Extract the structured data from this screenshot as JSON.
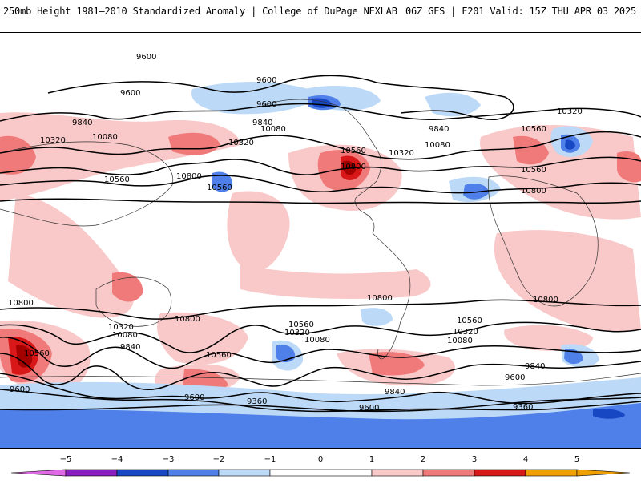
{
  "header": {
    "title": "250mb Height 1981–2010 Standardized Anomaly | College of DuPage NEXLAB",
    "run": "06Z GFS | F201 Valid: 15Z THU APR 03 2025"
  },
  "colors": {
    "neg5": "#e06ae6",
    "neg4": "#8a1fc1",
    "neg3": "#1847c4",
    "neg2": "#4f7fe8",
    "neg1": "#bcd9f7",
    "zero": "#ffffff",
    "pos1": "#f9c8c8",
    "pos2": "#f07a7a",
    "pos3": "#d81818",
    "pos4": "#a50000",
    "pos5": "#f0a000",
    "contour": "#000000",
    "coast": "#333333"
  },
  "contour_labels": [
    "9360",
    "9600",
    "9840",
    "10080",
    "10320",
    "10560",
    "10800"
  ],
  "colorbar": {
    "ticks": [
      "−5",
      "−4",
      "−3",
      "−2",
      "−1",
      "0",
      "1",
      "2",
      "3",
      "4",
      "5"
    ]
  }
}
